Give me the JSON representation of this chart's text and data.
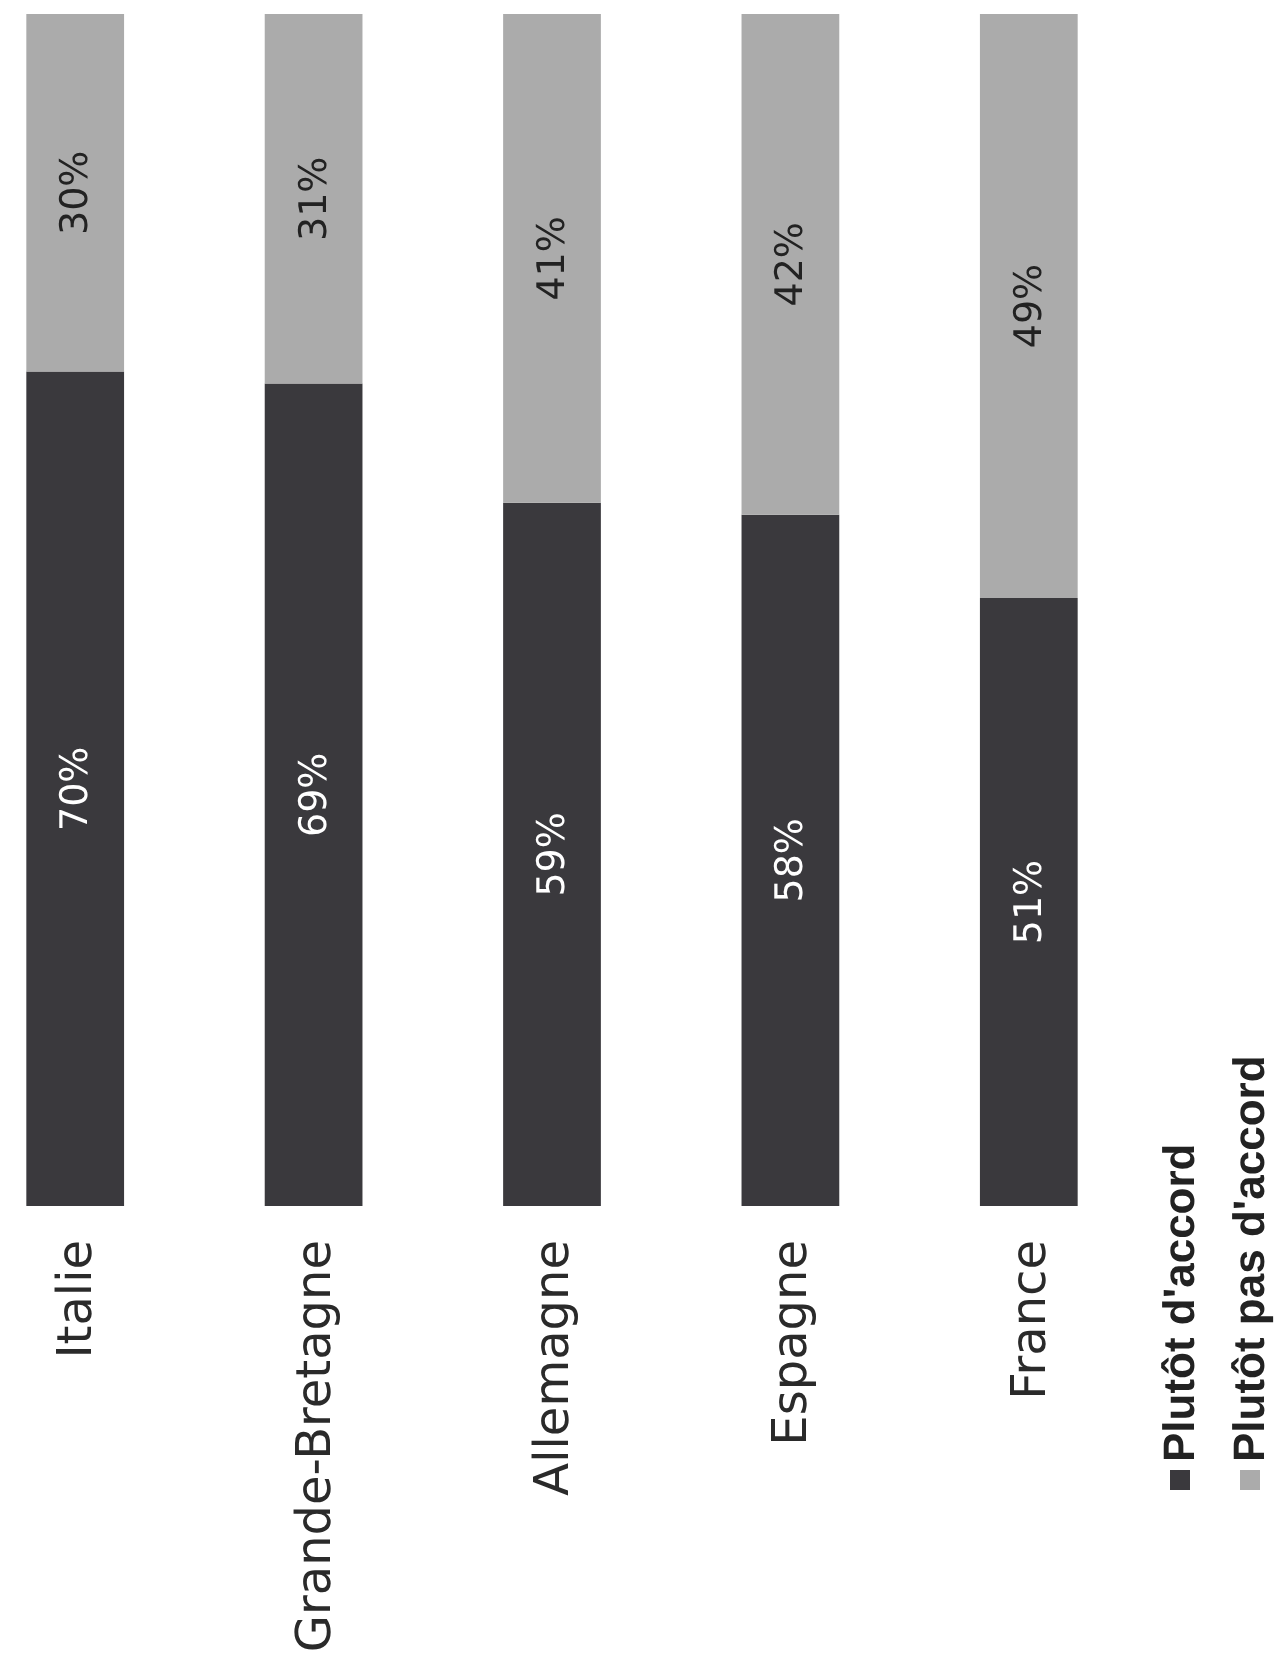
{
  "chart_data": {
    "type": "bar",
    "stacked": true,
    "categories": [
      "Italie",
      "Grande-Bretagne",
      "Allemagne",
      "Espagne",
      "France"
    ],
    "series": [
      {
        "name": "Plutôt d'accord",
        "color": "#3a393d",
        "values": [
          70,
          69,
          59,
          58,
          51
        ],
        "value_labels": [
          "70%",
          "69%",
          "59%",
          "58%",
          "51%"
        ]
      },
      {
        "name": "Plutôt pas d'accord",
        "color": "#ababab",
        "values": [
          30,
          31,
          41,
          42,
          49
        ],
        "value_labels": [
          "30%",
          "31%",
          "41%",
          "42%",
          "49%"
        ]
      }
    ],
    "legend": "bottom right"
  }
}
